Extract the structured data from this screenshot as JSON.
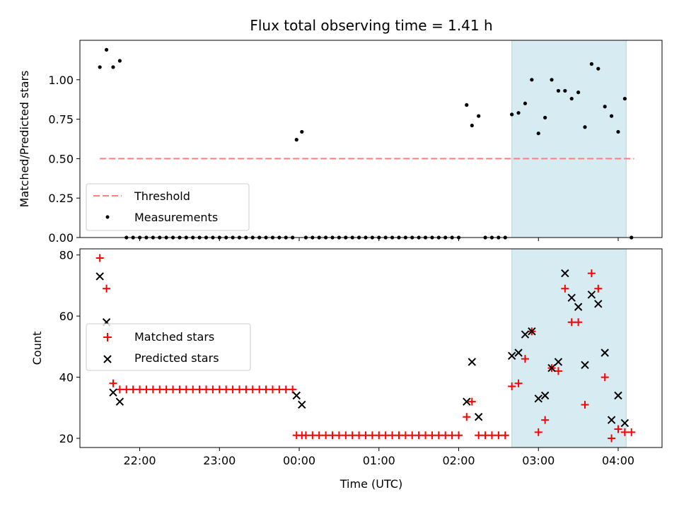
{
  "title": "Flux total observing time = 1.41 h",
  "chart_data": [
    {
      "type": "scatter",
      "ylabel": "Matched/Predicted stars",
      "xlim": [
        21.25,
        4.55
      ],
      "ylim": [
        0,
        1.25
      ],
      "yticks": [
        "0.00",
        "0.25",
        "0.50",
        "0.75",
        "1.00"
      ],
      "yticks_values": [
        0,
        0.25,
        0.5,
        0.75,
        1.0
      ],
      "shaded_span": {
        "start": "02:40",
        "end": "04:06",
        "color": "#add8e6"
      },
      "threshold": {
        "name": "Threshold",
        "value": 0.5,
        "x_start": "21:30",
        "x_end": "04:12",
        "color": "#ff7f7f",
        "style": "dashed"
      },
      "legend": {
        "position": "lower left",
        "entries": [
          "Threshold",
          "Measurements"
        ]
      },
      "series": [
        {
          "name": "Measurements",
          "color": "#000000",
          "marker": "dot",
          "x": [
            "21:30",
            "21:35",
            "21:40",
            "21:45",
            "21:50",
            "21:55",
            "22:00",
            "22:05",
            "22:10",
            "22:15",
            "22:20",
            "22:25",
            "22:30",
            "22:35",
            "22:40",
            "22:45",
            "22:50",
            "22:55",
            "23:00",
            "23:05",
            "23:10",
            "23:15",
            "23:20",
            "23:25",
            "23:30",
            "23:35",
            "23:40",
            "23:45",
            "23:50",
            "23:55",
            "23:58",
            "00:02",
            "00:05",
            "00:10",
            "00:15",
            "00:20",
            "00:25",
            "00:30",
            "00:35",
            "00:40",
            "00:45",
            "00:50",
            "00:55",
            "01:00",
            "01:05",
            "01:10",
            "01:15",
            "01:20",
            "01:25",
            "01:30",
            "01:35",
            "01:40",
            "01:45",
            "01:50",
            "01:55",
            "02:00",
            "02:06",
            "02:10",
            "02:15",
            "02:20",
            "02:25",
            "02:30",
            "02:35",
            "02:40",
            "02:45",
            "02:50",
            "02:55",
            "03:00",
            "03:05",
            "03:10",
            "03:15",
            "03:20",
            "03:25",
            "03:30",
            "03:35",
            "03:40",
            "03:45",
            "03:50",
            "03:55",
            "04:00",
            "04:05",
            "04:10"
          ],
          "y": [
            1.08,
            1.19,
            1.08,
            1.12,
            0,
            0,
            0,
            0,
            0,
            0,
            0,
            0,
            0,
            0,
            0,
            0,
            0,
            0,
            0,
            0,
            0,
            0,
            0,
            0,
            0,
            0,
            0,
            0,
            0,
            0,
            0.62,
            0.67,
            0,
            0,
            0,
            0,
            0,
            0,
            0,
            0,
            0,
            0,
            0,
            0,
            0,
            0,
            0,
            0,
            0,
            0,
            0,
            0,
            0,
            0,
            0,
            0,
            0.84,
            0.71,
            0.77,
            0,
            0,
            0,
            0,
            0.78,
            0.79,
            0.85,
            1.0,
            0.66,
            0.76,
            1.0,
            0.93,
            0.93,
            0.88,
            0.92,
            0.7,
            1.1,
            1.07,
            0.83,
            0.77,
            0.67,
            0.88,
            0
          ]
        }
      ]
    },
    {
      "type": "scatter",
      "xlabel": "Time (UTC)",
      "ylabel": "Count",
      "xlim": [
        21.25,
        4.55
      ],
      "ylim": [
        17,
        82
      ],
      "yticks": [
        "20",
        "40",
        "60",
        "80"
      ],
      "yticks_values": [
        20,
        40,
        60,
        80
      ],
      "xticks": [
        "22:00",
        "23:00",
        "00:00",
        "01:00",
        "02:00",
        "03:00",
        "04:00"
      ],
      "shaded_span": {
        "start": "02:40",
        "end": "04:06",
        "color": "#add8e6"
      },
      "legend": {
        "position": "center left",
        "entries": [
          "Matched stars",
          "Predicted stars"
        ]
      },
      "series": [
        {
          "name": "Matched stars",
          "color": "#ff0000",
          "marker": "plus",
          "x": [
            "21:30",
            "21:35",
            "21:40",
            "21:45",
            "21:50",
            "21:55",
            "22:00",
            "22:05",
            "22:10",
            "22:15",
            "22:20",
            "22:25",
            "22:30",
            "22:35",
            "22:40",
            "22:45",
            "22:50",
            "22:55",
            "23:00",
            "23:05",
            "23:10",
            "23:15",
            "23:20",
            "23:25",
            "23:30",
            "23:35",
            "23:40",
            "23:45",
            "23:50",
            "23:55",
            "23:58",
            "00:02",
            "00:05",
            "00:10",
            "00:15",
            "00:20",
            "00:25",
            "00:30",
            "00:35",
            "00:40",
            "00:45",
            "00:50",
            "00:55",
            "01:00",
            "01:05",
            "01:10",
            "01:15",
            "01:20",
            "01:25",
            "01:30",
            "01:35",
            "01:40",
            "01:45",
            "01:50",
            "01:55",
            "02:00",
            "02:06",
            "02:10",
            "02:15",
            "02:20",
            "02:25",
            "02:30",
            "02:35",
            "02:40",
            "02:45",
            "02:50",
            "02:55",
            "03:00",
            "03:05",
            "03:10",
            "03:15",
            "03:20",
            "03:25",
            "03:30",
            "03:35",
            "03:40",
            "03:45",
            "03:50",
            "03:55",
            "04:00",
            "04:05",
            "04:10"
          ],
          "y": [
            79,
            69,
            38,
            36,
            36,
            36,
            36,
            36,
            36,
            36,
            36,
            36,
            36,
            36,
            36,
            36,
            36,
            36,
            36,
            36,
            36,
            36,
            36,
            36,
            36,
            36,
            36,
            36,
            36,
            36,
            21,
            21,
            21,
            21,
            21,
            21,
            21,
            21,
            21,
            21,
            21,
            21,
            21,
            21,
            21,
            21,
            21,
            21,
            21,
            21,
            21,
            21,
            21,
            21,
            21,
            21,
            27,
            32,
            21,
            21,
            21,
            21,
            21,
            37,
            38,
            46,
            55,
            22,
            26,
            43,
            42,
            69,
            58,
            58,
            31,
            74,
            69,
            40,
            20,
            23,
            22,
            22
          ]
        },
        {
          "name": "Predicted stars",
          "color": "#000000",
          "marker": "x",
          "x": [
            "21:30",
            "21:35",
            "21:40",
            "21:45",
            "23:58",
            "00:02",
            "02:06",
            "02:10",
            "02:15",
            "02:40",
            "02:45",
            "02:50",
            "02:55",
            "03:00",
            "03:05",
            "03:10",
            "03:15",
            "03:20",
            "03:25",
            "03:30",
            "03:35",
            "03:40",
            "03:45",
            "03:50",
            "03:55",
            "04:00",
            "04:05"
          ],
          "y": [
            73,
            58,
            35,
            32,
            34,
            31,
            32,
            45,
            27,
            47,
            48,
            54,
            55,
            33,
            34,
            43,
            45,
            74,
            66,
            63,
            44,
            67,
            64,
            48,
            26,
            34,
            25
          ]
        }
      ]
    }
  ]
}
